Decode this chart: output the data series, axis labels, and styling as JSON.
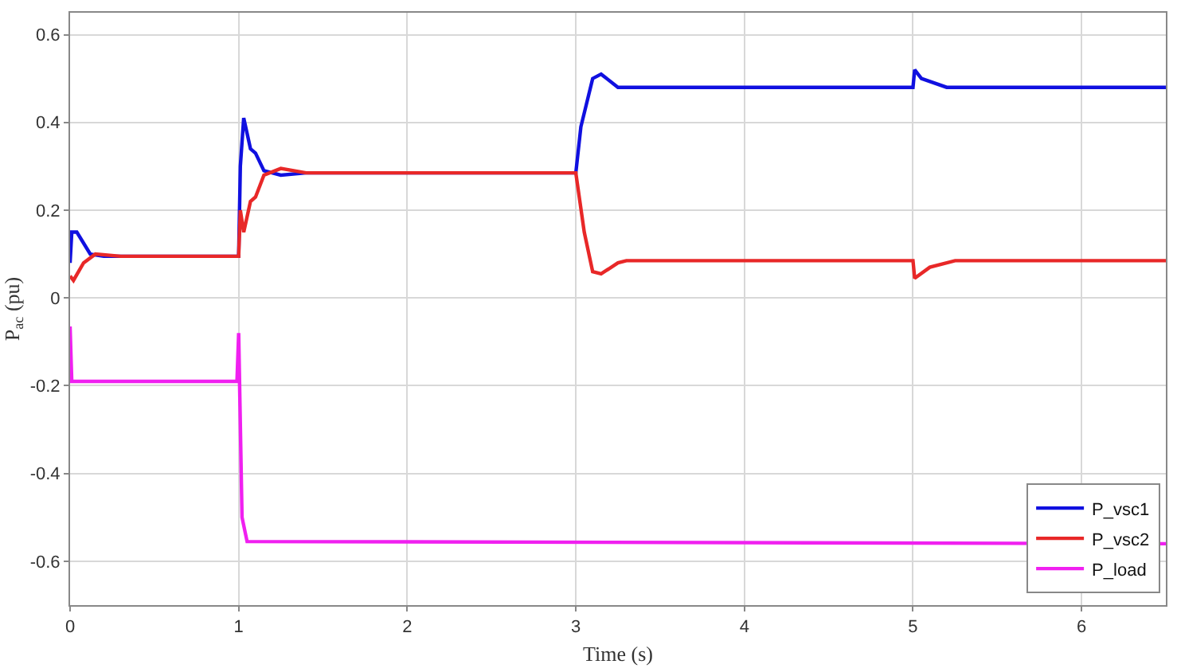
{
  "chart_data": {
    "type": "line",
    "xlabel": "Time (s)",
    "ylabel": "P$_{ac}$ (pu)",
    "xlim": [
      0,
      6.5
    ],
    "xticks": [
      0,
      1,
      2,
      3,
      4,
      5,
      6
    ],
    "ylim": [
      -0.7,
      0.65
    ],
    "yticks": [
      -0.6,
      -0.4,
      -0.2,
      0,
      0.2,
      0.4,
      0.6
    ],
    "grid": true,
    "legend": "bottom right",
    "line_style": "solid",
    "series": [
      {
        "name": "P_vsc1",
        "color": "#1010e0",
        "x": [
          0,
          0.01,
          0.04,
          0.12,
          0.2,
          1.0,
          1.01,
          1.03,
          1.07,
          1.1,
          1.15,
          1.25,
          1.4,
          3.0,
          3.03,
          3.1,
          3.15,
          3.25,
          5.0,
          5.01,
          5.05,
          5.2,
          6.5
        ],
        "values": [
          0.08,
          0.15,
          0.15,
          0.1,
          0.095,
          0.095,
          0.3,
          0.41,
          0.34,
          0.33,
          0.29,
          0.28,
          0.285,
          0.285,
          0.39,
          0.5,
          0.51,
          0.48,
          0.48,
          0.52,
          0.5,
          0.48,
          0.48
        ]
      },
      {
        "name": "P_vsc2",
        "color": "#e82828",
        "x": [
          0,
          0.02,
          0.08,
          0.15,
          0.3,
          1.0,
          1.01,
          1.03,
          1.07,
          1.1,
          1.15,
          1.25,
          1.4,
          3.0,
          3.05,
          3.1,
          3.15,
          3.25,
          3.3,
          5.0,
          5.01,
          5.1,
          5.25,
          6.5
        ],
        "values": [
          0.05,
          0.04,
          0.08,
          0.1,
          0.095,
          0.095,
          0.2,
          0.15,
          0.22,
          0.23,
          0.28,
          0.295,
          0.285,
          0.285,
          0.15,
          0.06,
          0.055,
          0.08,
          0.085,
          0.085,
          0.045,
          0.07,
          0.085,
          0.085
        ]
      },
      {
        "name": "P_load",
        "color": "#f020f0",
        "x": [
          0,
          0.01,
          0.99,
          1.0,
          1.02,
          1.05,
          6.5
        ],
        "values": [
          -0.065,
          -0.19,
          -0.19,
          -0.08,
          -0.5,
          -0.555,
          -0.56
        ]
      }
    ]
  }
}
